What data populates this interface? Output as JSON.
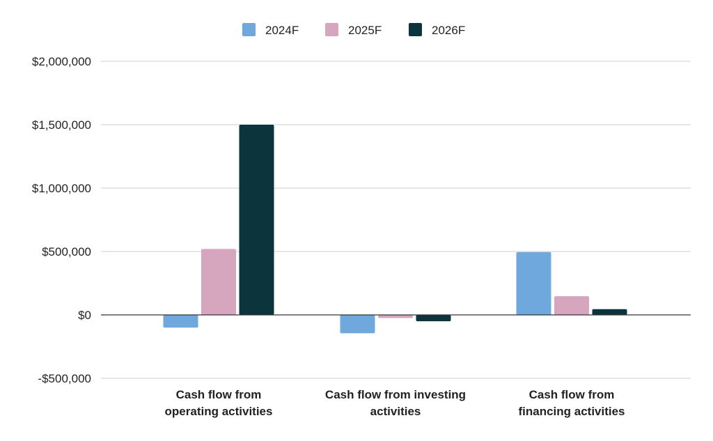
{
  "chart_data": {
    "type": "bar",
    "categories": [
      "Cash flow from operating activities",
      "Cash flow from investing activities",
      "Cash flow from financing activities"
    ],
    "category_label_lines": [
      [
        "Cash flow from",
        "operating activities"
      ],
      [
        "Cash flow from investing",
        "activities"
      ],
      [
        "Cash flow from",
        "financing activities"
      ]
    ],
    "series": [
      {
        "name": "2024F",
        "color": "#6fa8dc",
        "values": [
          -100000,
          -145000,
          495000
        ]
      },
      {
        "name": "2025F",
        "color": "#d5a6bd",
        "values": [
          520000,
          -25000,
          148000
        ]
      },
      {
        "name": "2026F",
        "color": "#0c343d",
        "values": [
          1500000,
          -50000,
          45000
        ]
      }
    ],
    "ylim": [
      -500000,
      2000000
    ],
    "yticks": [
      -500000,
      0,
      500000,
      1000000,
      1500000,
      2000000
    ],
    "ytick_labels": [
      "-$500,000",
      "$0",
      "$500,000",
      "$1,000,000",
      "$1,500,000",
      "$2,000,000"
    ],
    "legend_position": "top-center",
    "grid": true,
    "title": "",
    "xlabel": "",
    "ylabel": ""
  }
}
